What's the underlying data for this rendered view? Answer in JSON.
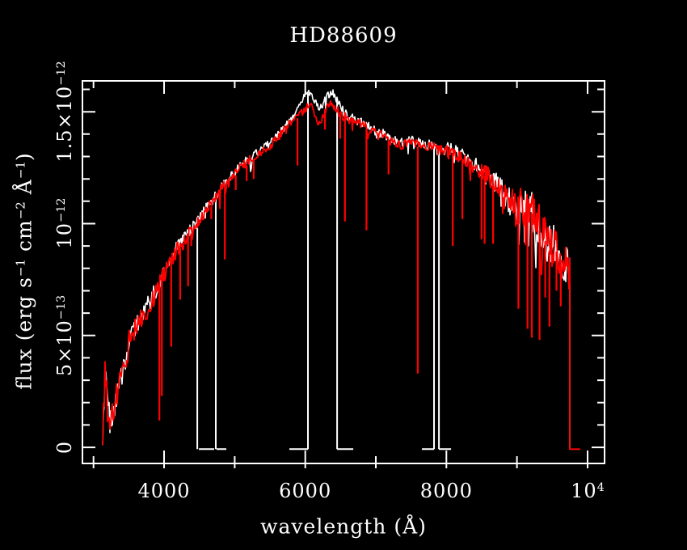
{
  "colors": {
    "background": "#000000",
    "axis": "#ffffff",
    "spectrum_red": "#ff0000",
    "spectrum_white": "#ffffff"
  },
  "title": "HD88609",
  "axis_labels": {
    "x": {
      "text": "wavelength (Å)"
    },
    "y": {
      "segments": [
        {
          "t": "flux (erg s"
        },
        {
          "t": "−1"
        },
        {
          "t": " cm"
        },
        {
          "t": "−2"
        },
        {
          "t": " Å"
        },
        {
          "t": "−1"
        },
        {
          "t": ")"
        }
      ]
    }
  },
  "tick_labels": {
    "x": [
      {
        "base": "4000",
        "exp": "",
        "value": 4000
      },
      {
        "base": "6000",
        "exp": "",
        "value": 6000
      },
      {
        "base": "8000",
        "exp": "",
        "value": 8000
      },
      {
        "base": "10",
        "exp": "4",
        "value": 10000
      }
    ],
    "y": [
      {
        "base": "0",
        "exp": "",
        "value": 0
      },
      {
        "base": "5×10",
        "exp": "−13",
        "value": 5e-13
      },
      {
        "base": "10",
        "exp": "−12",
        "value": 1e-12
      },
      {
        "base": "1.5×10",
        "exp": "−12",
        "value": 1.5e-12
      }
    ]
  },
  "chart_data": {
    "type": "line",
    "title": "HD88609",
    "xlabel": "wavelength (Å)",
    "ylabel": "flux (erg s^-1 cm^-2 Å^-1)",
    "xlim": [
      2843,
      10241
    ],
    "ylim": [
      -7.2e-14,
      1.638e-12
    ],
    "grid": false,
    "legend": null,
    "xticks_major": [
      4000,
      6000,
      8000,
      10000
    ],
    "xticks_minor_step": 1000,
    "yticks_major_1e13": [
      0,
      5,
      10,
      15
    ],
    "yticks_minor_step_1e13": 1,
    "flux_unit_for_series": "1e-13 erg s^-1 cm^-2 Å^-1",
    "series": [
      {
        "name": "spectrum-red",
        "color": "#ff0000",
        "wave_start": 3130,
        "wave_end": 9747,
        "zero_tail_end": 9897,
        "envelope": [
          [
            3130,
            0.2
          ],
          [
            3164,
            3.5
          ],
          [
            3198,
            1.7
          ],
          [
            3233,
            1.1
          ],
          [
            3279,
            1.6
          ],
          [
            3336,
            2.4
          ],
          [
            3393,
            3.0
          ],
          [
            3450,
            3.7
          ],
          [
            3508,
            4.8
          ],
          [
            3565,
            5.1
          ],
          [
            3622,
            5.5
          ],
          [
            3679,
            5.8
          ],
          [
            3737,
            6.0
          ],
          [
            3794,
            6.4
          ],
          [
            3851,
            6.7
          ],
          [
            3908,
            7.1
          ],
          [
            3966,
            7.5
          ],
          [
            4023,
            7.9
          ],
          [
            4080,
            8.3
          ],
          [
            4137,
            8.6
          ],
          [
            4195,
            8.9
          ],
          [
            4252,
            9.1
          ],
          [
            4309,
            9.3
          ],
          [
            4366,
            9.6
          ],
          [
            4424,
            9.8
          ],
          [
            4481,
            10.1
          ],
          [
            4538,
            10.3
          ],
          [
            4595,
            10.6
          ],
          [
            4653,
            10.8
          ],
          [
            4710,
            11.1
          ],
          [
            4767,
            11.3
          ],
          [
            4824,
            11.6
          ],
          [
            4882,
            11.8
          ],
          [
            4939,
            12.0
          ],
          [
            4996,
            12.2
          ],
          [
            5053,
            12.4
          ],
          [
            5111,
            12.6
          ],
          [
            5168,
            12.7
          ],
          [
            5225,
            12.9
          ],
          [
            5282,
            13.0
          ],
          [
            5340,
            13.1
          ],
          [
            5397,
            13.2
          ],
          [
            5454,
            13.4
          ],
          [
            5511,
            13.5
          ],
          [
            5569,
            13.7
          ],
          [
            5626,
            13.9
          ],
          [
            5683,
            14.1
          ],
          [
            5740,
            14.3
          ],
          [
            5798,
            14.5
          ],
          [
            5855,
            14.7
          ],
          [
            5912,
            14.9
          ],
          [
            5969,
            15.0
          ],
          [
            6027,
            15.2
          ],
          [
            6084,
            15.3
          ],
          [
            6141,
            14.9
          ],
          [
            6199,
            14.4
          ],
          [
            6244,
            14.7
          ],
          [
            6290,
            15.1
          ],
          [
            6336,
            15.3
          ],
          [
            6382,
            15.3
          ],
          [
            6428,
            15.2
          ],
          [
            6473,
            15.0
          ],
          [
            6531,
            14.8
          ],
          [
            6599,
            14.7
          ],
          [
            6668,
            14.6
          ],
          [
            6737,
            14.5
          ],
          [
            6828,
            14.4
          ],
          [
            6920,
            14.2
          ],
          [
            7011,
            14.0
          ],
          [
            7103,
            13.9
          ],
          [
            7195,
            13.7
          ],
          [
            7286,
            13.6
          ],
          [
            7378,
            13.5
          ],
          [
            7469,
            13.6
          ],
          [
            7561,
            13.6
          ],
          [
            7630,
            13.5
          ],
          [
            7721,
            13.4
          ],
          [
            7813,
            13.4
          ],
          [
            7893,
            13.3
          ],
          [
            7973,
            13.2
          ],
          [
            8042,
            13.3
          ],
          [
            8111,
            13.2
          ],
          [
            8179,
            13.0
          ],
          [
            8248,
            12.9
          ],
          [
            8317,
            12.7
          ],
          [
            8385,
            12.6
          ],
          [
            8454,
            12.4
          ],
          [
            8523,
            12.3
          ],
          [
            8591,
            12.1
          ],
          [
            8660,
            11.8
          ],
          [
            8729,
            11.6
          ],
          [
            8797,
            11.3
          ],
          [
            8866,
            11.1
          ],
          [
            8935,
            10.8
          ],
          [
            9003,
            10.6
          ],
          [
            9060,
            10.9
          ],
          [
            9118,
            11.1
          ],
          [
            9175,
            10.8
          ],
          [
            9232,
            10.4
          ],
          [
            9289,
            10.0
          ],
          [
            9347,
            9.6
          ],
          [
            9404,
            9.3
          ],
          [
            9461,
            8.9
          ],
          [
            9518,
            9.0
          ],
          [
            9576,
            8.8
          ],
          [
            9633,
            8.4
          ],
          [
            9690,
            8.1
          ],
          [
            9747,
            7.6
          ]
        ],
        "absorption_lines": [
          [
            3933,
            1.2
          ],
          [
            3968,
            2.3
          ],
          [
            4101,
            4.5
          ],
          [
            4227,
            6.6
          ],
          [
            4340,
            7.2
          ],
          [
            4384,
            9.0
          ],
          [
            4668,
            10.2
          ],
          [
            4861,
            8.4
          ],
          [
            5015,
            11.5
          ],
          [
            5170,
            11.9
          ],
          [
            5270,
            12.0
          ],
          [
            5890,
            12.6
          ],
          [
            6280,
            14.2
          ],
          [
            6495,
            13.8
          ],
          [
            6563,
            10.1
          ],
          [
            6867,
            9.7
          ],
          [
            7180,
            12.2
          ],
          [
            7594,
            3.3
          ],
          [
            8090,
            9.0
          ],
          [
            8227,
            10.2
          ],
          [
            8498,
            9.3
          ],
          [
            8542,
            9.1
          ],
          [
            8662,
            9.1
          ],
          [
            9020,
            6.2
          ],
          [
            9150,
            5.3
          ],
          [
            9210,
            4.9
          ],
          [
            9320,
            4.8
          ],
          [
            9400,
            6.7
          ],
          [
            9460,
            5.4
          ],
          [
            9560,
            7.0
          ],
          [
            9620,
            6.3
          ]
        ]
      },
      {
        "name": "spectrum-white",
        "color": "#ffffff",
        "wave_start": 3130,
        "wave_end": 9747,
        "zero_tail_end": 9880,
        "envelope_offset": 0.11,
        "envelope_overrides": [
          [
            5900,
            15.2
          ],
          [
            5960,
            15.5
          ],
          [
            6020,
            15.8
          ],
          [
            6080,
            15.9
          ],
          [
            6140,
            15.5
          ],
          [
            6199,
            15.2
          ],
          [
            6260,
            15.4
          ],
          [
            6330,
            15.8
          ],
          [
            6390,
            15.9
          ],
          [
            6450,
            15.5
          ],
          [
            6520,
            15.1
          ]
        ],
        "order_gaps": [
          {
            "x": 4470,
            "foot": [
              4493,
              4710
            ]
          },
          {
            "x": 4733,
            "foot": [
              4744,
              4882
            ]
          },
          {
            "x": 6038,
            "foot": [
              5775,
              6038
            ]
          },
          {
            "x": 6451,
            "foot": [
              6451,
              6680
            ]
          },
          {
            "x": 7825,
            "foot": [
              7653,
              7825
            ]
          },
          {
            "x": 7894,
            "foot": [
              7894,
              8066
            ]
          }
        ]
      }
    ],
    "noise_amplitude_1e13": [
      [
        3130,
        0.8
      ],
      [
        3300,
        0.65
      ],
      [
        3600,
        0.5
      ],
      [
        3900,
        0.42
      ],
      [
        4200,
        0.32
      ],
      [
        4600,
        0.26
      ],
      [
        5000,
        0.2
      ],
      [
        5500,
        0.18
      ],
      [
        6000,
        0.2
      ],
      [
        6600,
        0.2
      ],
      [
        7000,
        0.22
      ],
      [
        7600,
        0.22
      ],
      [
        8100,
        0.28
      ],
      [
        8600,
        0.42
      ],
      [
        9000,
        0.8
      ],
      [
        9200,
        1.05
      ],
      [
        9500,
        1.0
      ],
      [
        9750,
        0.9
      ]
    ]
  }
}
